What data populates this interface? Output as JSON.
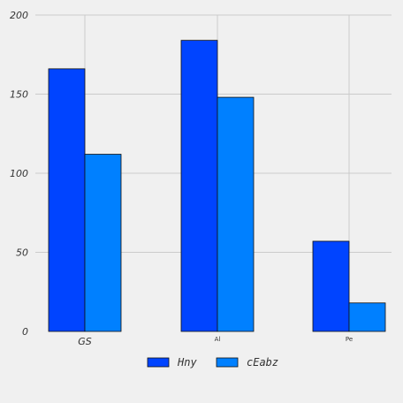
{
  "chart_data": {
    "type": "bar",
    "categories": [
      "GS",
      "Al",
      "Pe"
    ],
    "series": [
      {
        "name": "Hny",
        "values": [
          166,
          184,
          57
        ],
        "color": "#0044ff"
      },
      {
        "name": "cEabz",
        "values": [
          112,
          148,
          18
        ],
        "color": "#0080ff"
      }
    ],
    "title": "",
    "xlabel": "",
    "ylabel": "",
    "ylim": [
      0,
      200
    ],
    "yticks": [
      0,
      50,
      100,
      150,
      200
    ],
    "grid": true,
    "legend_position": "bottom-center"
  }
}
